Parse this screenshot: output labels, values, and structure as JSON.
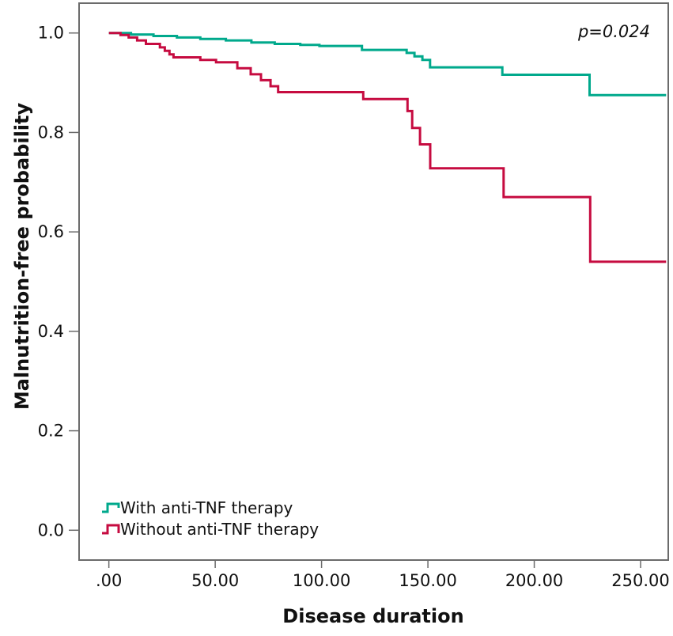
{
  "chart_data": {
    "type": "line",
    "subtype": "kaplan_meier_step",
    "title": "",
    "annotation": "p=0.024",
    "xlabel": "Disease duration",
    "ylabel": "Malnutrition-free probability",
    "xlim": [
      -14,
      263
    ],
    "ylim": [
      -0.06,
      1.06
    ],
    "x_end": 262,
    "grid": false,
    "legend_position": "inside-bottom-left",
    "x_ticks": [
      {
        "value": 0,
        "label": ".00"
      },
      {
        "value": 50,
        "label": "50.00"
      },
      {
        "value": 100,
        "label": "100.00"
      },
      {
        "value": 150,
        "label": "150.00"
      },
      {
        "value": 200,
        "label": "200.00"
      },
      {
        "value": 250,
        "label": "250.00"
      }
    ],
    "y_ticks": [
      {
        "value": 0.0,
        "label": "0.0"
      },
      {
        "value": 0.2,
        "label": "0.2"
      },
      {
        "value": 0.4,
        "label": "0.4"
      },
      {
        "value": 0.6,
        "label": "0.6"
      },
      {
        "value": 0.8,
        "label": "0.8"
      },
      {
        "value": 1.0,
        "label": "1.0"
      }
    ],
    "series": [
      {
        "name": "With anti-TNF therapy",
        "color": "#00a98c",
        "steps": [
          [
            0,
            1.0
          ],
          [
            10.4,
            0.997
          ],
          [
            21,
            0.994
          ],
          [
            32,
            0.991
          ],
          [
            43,
            0.988
          ],
          [
            55,
            0.985
          ],
          [
            67,
            0.981
          ],
          [
            78,
            0.978
          ],
          [
            90,
            0.976
          ],
          [
            99,
            0.974
          ],
          [
            119,
            0.966
          ],
          [
            140,
            0.96
          ],
          [
            143.7,
            0.953
          ],
          [
            147.4,
            0.946
          ],
          [
            151,
            0.931
          ],
          [
            185,
            0.916
          ],
          [
            226,
            0.875
          ]
        ]
      },
      {
        "name": "Without anti-TNF therapy",
        "color": "#c60b40",
        "steps": [
          [
            0,
            1.0
          ],
          [
            5.5,
            0.996
          ],
          [
            9.3,
            0.991
          ],
          [
            13.3,
            0.985
          ],
          [
            17.4,
            0.978
          ],
          [
            24,
            0.971
          ],
          [
            26.3,
            0.964
          ],
          [
            28.5,
            0.957
          ],
          [
            30.4,
            0.951
          ],
          [
            43,
            0.946
          ],
          [
            50.4,
            0.941
          ],
          [
            60.4,
            0.929
          ],
          [
            66.7,
            0.917
          ],
          [
            71.5,
            0.905
          ],
          [
            76,
            0.893
          ],
          [
            79.6,
            0.881
          ],
          [
            119.6,
            0.867
          ],
          [
            140.4,
            0.843
          ],
          [
            142.6,
            0.809
          ],
          [
            146.3,
            0.776
          ],
          [
            151.1,
            0.728
          ],
          [
            185.6,
            0.67
          ],
          [
            226.3,
            0.54
          ]
        ]
      }
    ]
  },
  "styles": {
    "axis_color": "#6b6b6b",
    "text_color": "#111111",
    "background": "#ffffff",
    "curve_width": 3
  }
}
